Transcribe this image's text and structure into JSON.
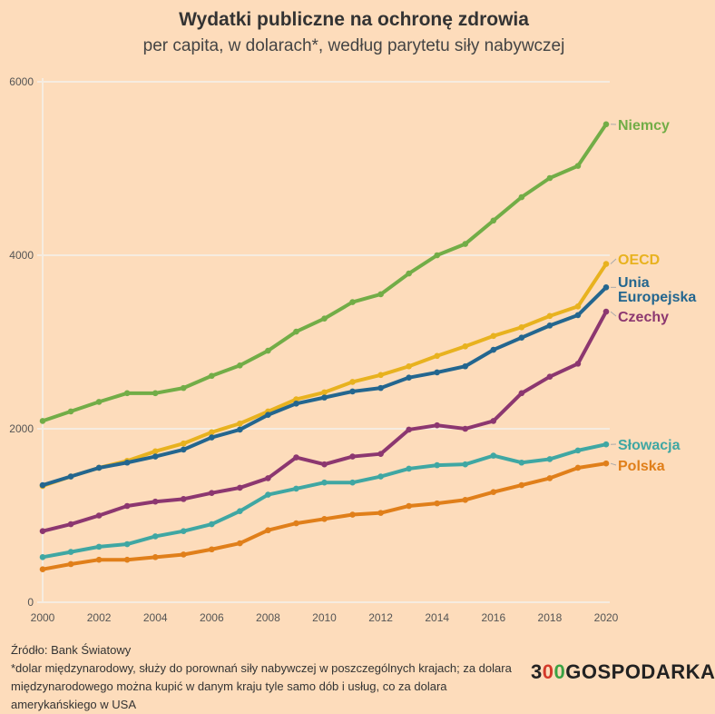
{
  "title": "Wydatki publiczne na ochronę zdrowia",
  "subtitle": "per capita, w dolarach*, według parytetu siły nabywczej",
  "chart_data": {
    "type": "line",
    "title": "Wydatki publiczne na ochronę zdrowia",
    "subtitle": "per capita, w dolarach*, według parytetu siły nabywczej",
    "x": [
      2000,
      2001,
      2002,
      2003,
      2004,
      2005,
      2006,
      2007,
      2008,
      2009,
      2010,
      2011,
      2012,
      2013,
      2014,
      2015,
      2016,
      2017,
      2018,
      2019,
      2020
    ],
    "xticks": [
      "2000",
      "2002",
      "2004",
      "2006",
      "2008",
      "2010",
      "2012",
      "2014",
      "2016",
      "2018",
      "2020"
    ],
    "yticks": [
      "0",
      "2000",
      "4000",
      "6000"
    ],
    "xlim": [
      2000,
      2020
    ],
    "ylim": [
      0,
      6000
    ],
    "grid": true,
    "legend": "direct labels at line ends (right)",
    "series": [
      {
        "name": "Niemcy",
        "color": "#72ad47",
        "values": [
          2090,
          2200,
          2310,
          2410,
          2410,
          2470,
          2610,
          2730,
          2900,
          3120,
          3270,
          3460,
          3550,
          3790,
          4000,
          4130,
          4400,
          4670,
          4890,
          5030,
          5510
        ]
      },
      {
        "name": "OECD",
        "color": "#e8b21f",
        "values": [
          1340,
          1450,
          1550,
          1630,
          1740,
          1830,
          1960,
          2060,
          2200,
          2340,
          2420,
          2540,
          2620,
          2720,
          2840,
          2950,
          3070,
          3170,
          3300,
          3410,
          3900
        ]
      },
      {
        "name": "Unia Europejska",
        "color": "#23668f",
        "values": [
          1350,
          1450,
          1550,
          1610,
          1680,
          1760,
          1900,
          1990,
          2160,
          2290,
          2360,
          2430,
          2470,
          2590,
          2650,
          2720,
          2910,
          3050,
          3190,
          3310,
          3630
        ]
      },
      {
        "name": "Czechy",
        "color": "#8c3770",
        "values": [
          820,
          900,
          1000,
          1110,
          1160,
          1190,
          1260,
          1320,
          1430,
          1670,
          1590,
          1680,
          1710,
          1990,
          2040,
          2000,
          2090,
          2410,
          2600,
          2750,
          3350
        ]
      },
      {
        "name": "Słowacja",
        "color": "#3fa7a3",
        "values": [
          520,
          580,
          640,
          670,
          760,
          820,
          900,
          1050,
          1240,
          1310,
          1380,
          1380,
          1450,
          1540,
          1580,
          1590,
          1690,
          1610,
          1650,
          1750,
          1820
        ]
      },
      {
        "name": "Polska",
        "color": "#e07f1a",
        "values": [
          380,
          440,
          490,
          490,
          520,
          550,
          610,
          680,
          830,
          910,
          960,
          1010,
          1030,
          1110,
          1140,
          1180,
          1270,
          1350,
          1430,
          1550,
          1600
        ]
      }
    ]
  },
  "labels": {
    "ue_line1": "Unia",
    "ue_line2": "Europejska"
  },
  "footer": {
    "source": "Źródło: Bank Światowy",
    "note": "*dolar międzynarodowy, służy do porownań siły nabywczej w poszczególnych krajach; za dolara międzynarodowego można kupić w danym kraju tyle samo dób i usług, co za dolara amerykańskiego w USA"
  },
  "logo": {
    "text": "300GOSPODARKA",
    "part1": "3",
    "part2": "0",
    "part3": "0",
    "part4": "GOSPODARKA"
  }
}
